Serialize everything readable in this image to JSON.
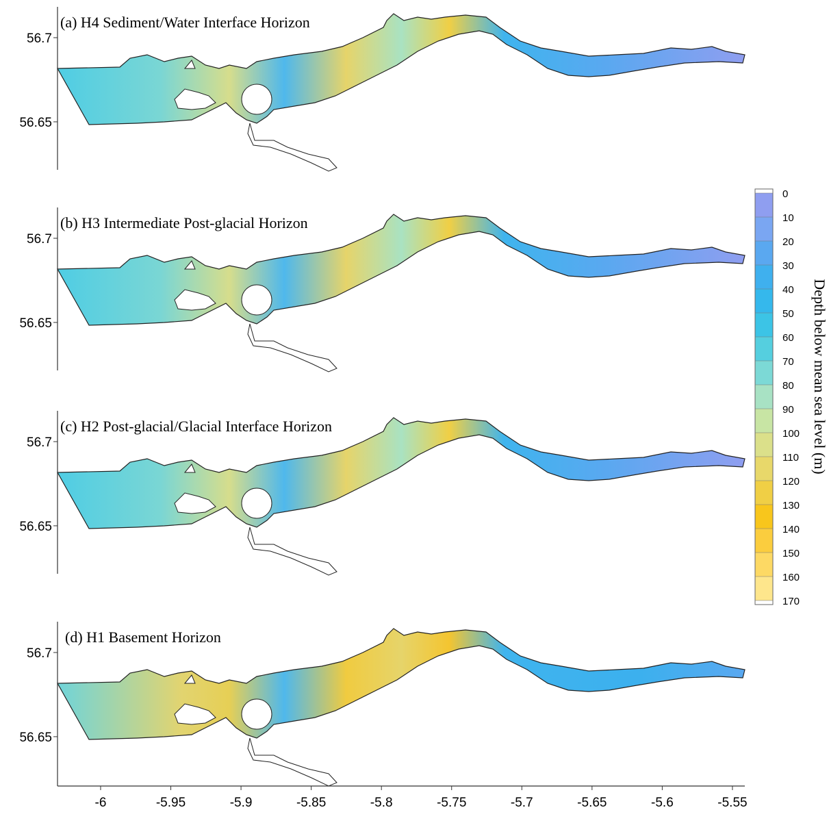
{
  "panels": [
    {
      "title": "(a) H4  Sediment/Water Interface Horizon",
      "ylim": [
        56.6215,
        56.7183
      ],
      "yticks": [
        56.65,
        56.7
      ]
    },
    {
      "title": "(b) H3 Intermediate Post-glacial Horizon",
      "ylim": [
        56.6215,
        56.7183
      ],
      "yticks": [
        56.65,
        56.7
      ]
    },
    {
      "title": "(c) H2 Post-glacial/Glacial Interface Horizon",
      "ylim": [
        56.6215,
        56.7183
      ],
      "yticks": [
        56.65,
        56.7
      ]
    },
    {
      "title": "(d) H1  Basement Horizon",
      "ylim": [
        56.6215,
        56.7183
      ],
      "yticks": [
        56.65,
        56.7
      ]
    }
  ],
  "xaxis": {
    "xlim": [
      -6.0307,
      -5.5412
    ],
    "xticks": [
      -6,
      -5.95,
      -5.9,
      -5.85,
      -5.8,
      -5.75,
      -5.7,
      -5.65,
      -5.6,
      -5.55
    ]
  },
  "colorbar": {
    "label": "Depth below mean sea level (m)",
    "lim": [
      0,
      170
    ],
    "ticks": [
      0,
      10,
      20,
      30,
      40,
      50,
      60,
      70,
      80,
      90,
      100,
      110,
      120,
      130,
      140,
      150,
      160,
      170
    ],
    "colors": [
      "#8f9ef0",
      "#7aa6f2",
      "#5aa8f0",
      "#3fb0ee",
      "#35b8ec",
      "#3cc4e6",
      "#55cfdf",
      "#7cd9d6",
      "#a8e2c4",
      "#c8e5a4",
      "#dbe08a",
      "#e8d86a",
      "#f0cf45",
      "#f8c61c",
      "#fbcd3e",
      "#fdd964",
      "#fee68c"
    ]
  }
}
